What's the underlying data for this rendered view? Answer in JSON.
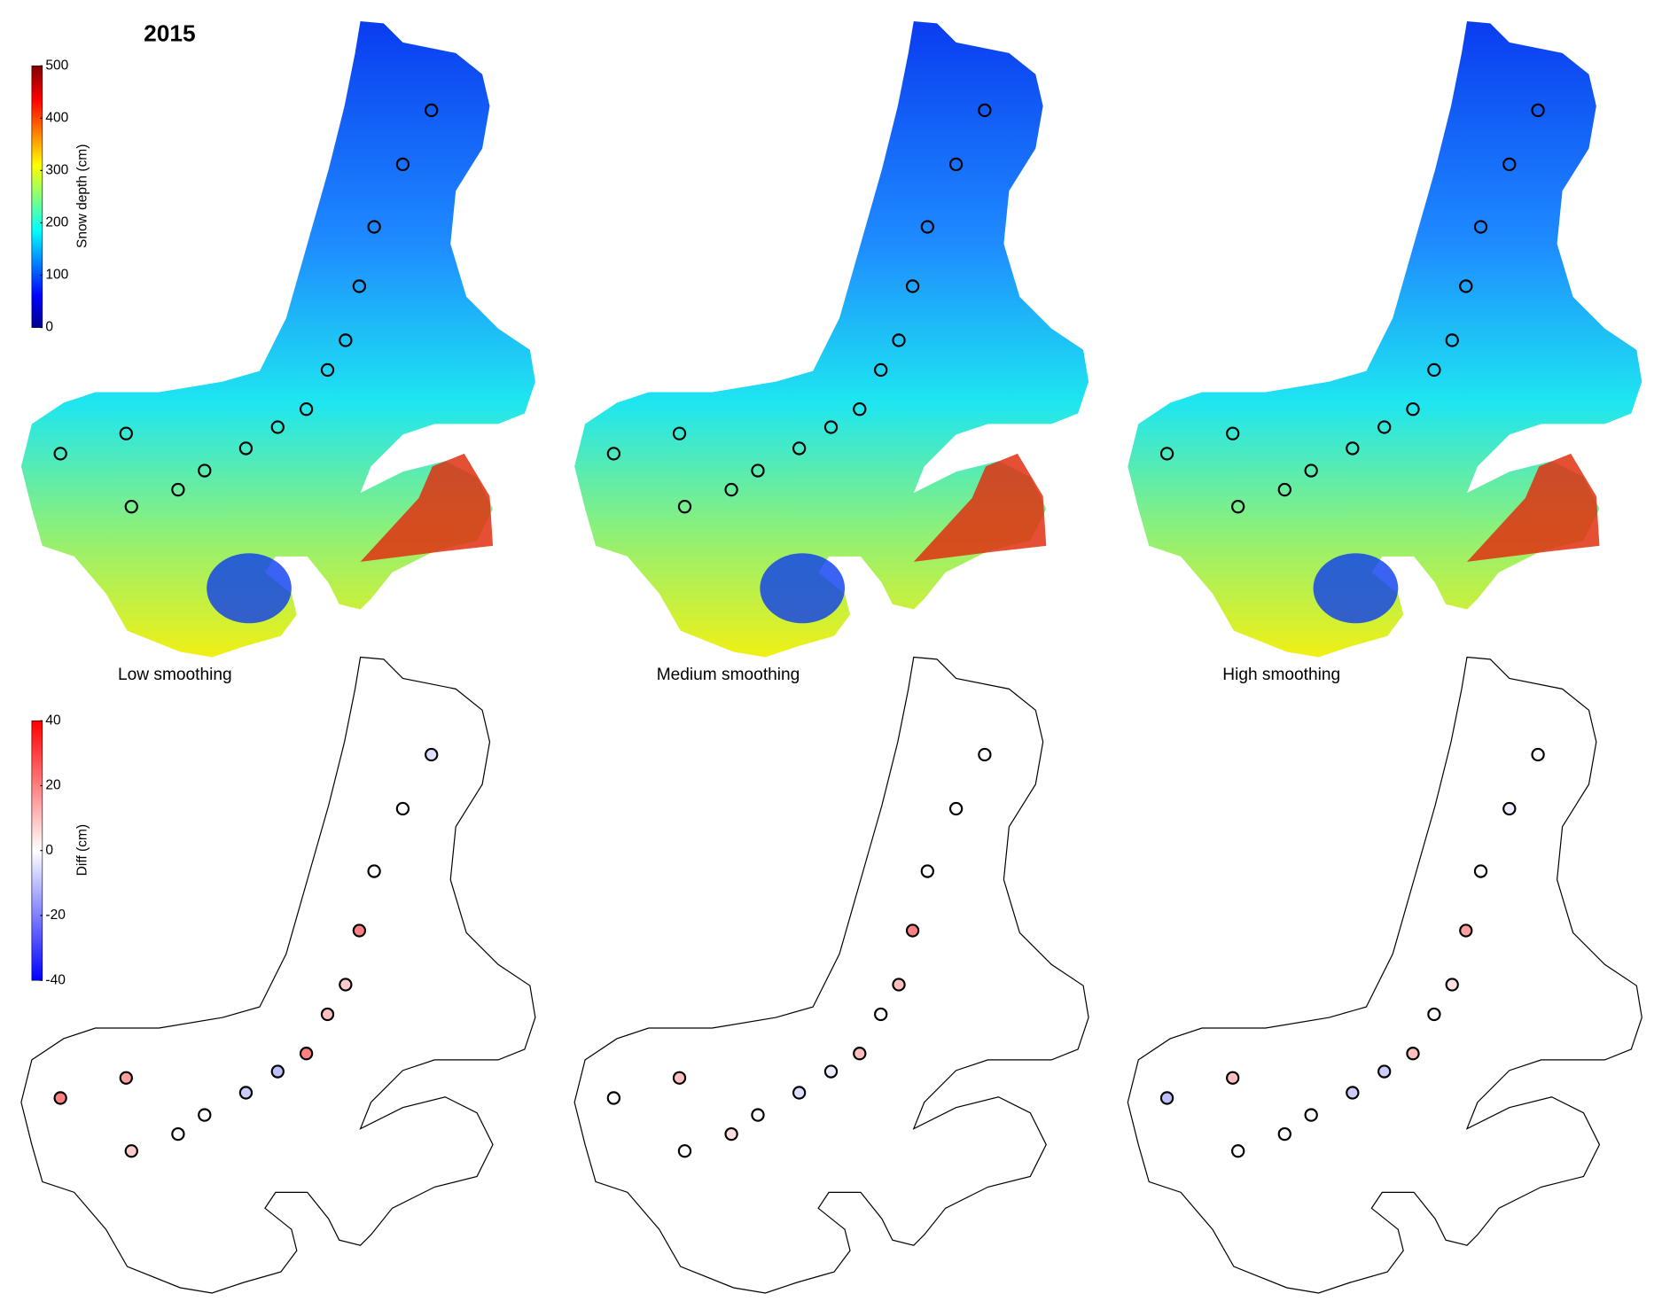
{
  "title": "2015",
  "depth_colorbar": {
    "label": "Snow depth (cm)",
    "lim": [
      0,
      500
    ],
    "ticks": [
      0,
      100,
      200,
      300,
      400,
      500
    ]
  },
  "diff_colorbar": {
    "label": "Diff (cm)",
    "lim": [
      -40,
      40
    ],
    "ticks": [
      -40,
      -20,
      0,
      20,
      40
    ]
  },
  "panels": [
    {
      "title": "Low smoothing",
      "station_diffs": [
        -5,
        0,
        0,
        20,
        8,
        10,
        20,
        -10,
        -8,
        0,
        0,
        8,
        15,
        20
      ]
    },
    {
      "title": "Medium smoothing",
      "station_diffs": [
        0,
        0,
        0,
        20,
        10,
        0,
        10,
        -3,
        -5,
        0,
        5,
        0,
        10,
        0
      ]
    },
    {
      "title": "High smoothing",
      "station_diffs": [
        0,
        -3,
        0,
        15,
        5,
        0,
        10,
        -8,
        -8,
        0,
        0,
        0,
        10,
        -10
      ]
    }
  ]
}
